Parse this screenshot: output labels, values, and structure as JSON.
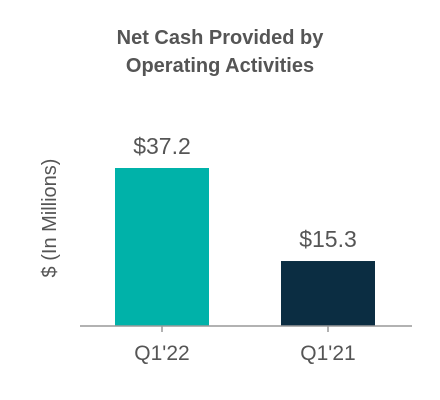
{
  "chart_data": {
    "type": "bar",
    "title_lines": [
      "Net Cash Provided by",
      "Operating Activities"
    ],
    "ylabel": "$ (In Millions)",
    "categories": [
      "Q1'22",
      "Q1'21"
    ],
    "values": [
      37.2,
      15.3
    ],
    "value_labels": [
      "$37.2",
      "$15.3"
    ],
    "bar_colors": [
      "#00b2a9",
      "#0b2d42"
    ],
    "axis_color": "#999999",
    "ylim": [
      0,
      37.2
    ],
    "grid": false,
    "legend": "none"
  }
}
